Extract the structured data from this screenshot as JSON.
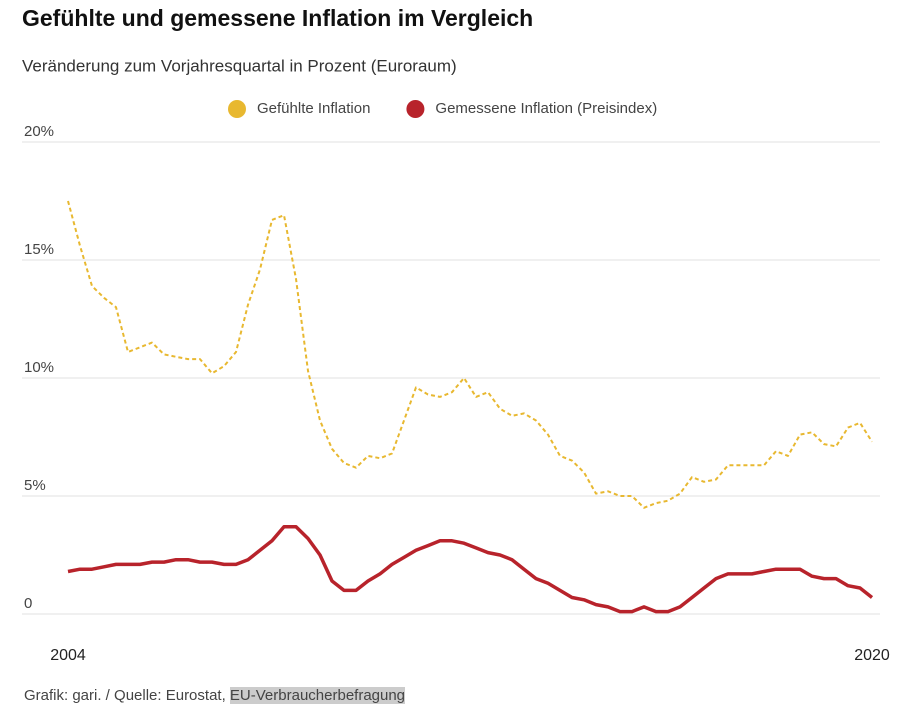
{
  "chart_data": {
    "type": "line",
    "title": "Gefühlte und gemessene Inflation im Vergleich",
    "subtitle": "Veränderung zum Vorjahresquartal in Prozent (Euroraum)",
    "source": [
      "Grafik: gari. / Quelle: Eurostat,",
      "EU-Verbraucherbefragung"
    ],
    "categories": [
      "2004",
      null,
      null,
      null,
      null,
      null,
      null,
      null,
      null,
      null,
      null,
      null,
      null,
      null,
      null,
      null,
      null,
      null,
      null,
      null,
      null,
      null,
      null,
      null,
      null,
      null,
      null,
      null,
      null,
      null,
      null,
      null,
      null,
      null,
      null,
      null,
      null,
      null,
      null,
      null,
      null,
      null,
      null,
      null,
      null,
      null,
      null,
      null,
      null,
      null,
      null,
      null,
      null,
      null,
      null,
      null,
      null,
      null,
      null,
      null,
      null,
      null,
      null,
      null,
      null,
      null,
      null,
      "2020"
    ],
    "series": [
      {
        "name": "Gefühlte Inflation",
        "color": "#e8b830",
        "dashed": true,
        "values": [
          17.5,
          15.6,
          13.9,
          13.4,
          13.0,
          11.1,
          11.3,
          11.5,
          11.0,
          10.9,
          10.8,
          10.8,
          10.2,
          10.5,
          11.1,
          13.1,
          14.6,
          16.7,
          16.9,
          14.2,
          10.3,
          8.2,
          7.0,
          6.4,
          6.2,
          6.7,
          6.6,
          6.8,
          8.2,
          9.6,
          9.3,
          9.2,
          9.4,
          10.0,
          9.2,
          9.4,
          8.7,
          8.4,
          8.5,
          8.2,
          7.6,
          6.7,
          6.5,
          6.0,
          5.1,
          5.2,
          5.0,
          5.0,
          4.5,
          4.7,
          4.8,
          5.1,
          5.8,
          5.6,
          5.7,
          6.3,
          6.3,
          6.3,
          6.3,
          6.9,
          6.7,
          7.6,
          7.7,
          7.2,
          7.1,
          7.9,
          8.1,
          7.3
        ]
      },
      {
        "name": "Gemessene Inflation (Preisindex)",
        "color": "#b8232b",
        "dashed": false,
        "values": [
          1.8,
          1.9,
          1.9,
          2.0,
          2.1,
          2.1,
          2.1,
          2.2,
          2.2,
          2.3,
          2.3,
          2.2,
          2.2,
          2.1,
          2.1,
          2.3,
          2.7,
          3.1,
          3.7,
          3.7,
          3.2,
          2.5,
          1.4,
          1.0,
          1.0,
          1.4,
          1.7,
          2.1,
          2.4,
          2.7,
          2.9,
          3.1,
          3.1,
          3.0,
          2.8,
          2.6,
          2.5,
          2.3,
          1.9,
          1.5,
          1.3,
          1.0,
          0.7,
          0.6,
          0.4,
          0.3,
          0.1,
          0.1,
          0.3,
          0.1,
          0.1,
          0.3,
          0.7,
          1.1,
          1.5,
          1.7,
          1.7,
          1.7,
          1.8,
          1.9,
          1.9,
          1.9,
          1.6,
          1.5,
          1.5,
          1.2,
          1.1,
          0.7
        ]
      }
    ],
    "ylim": [
      0,
      20
    ],
    "yticks": [
      0,
      {
        "value": 5,
        "label": "5%"
      },
      {
        "value": 10,
        "label": "10%"
      },
      {
        "value": 15,
        "label": "15%"
      },
      {
        "value": 20,
        "label": "20%"
      }
    ],
    "grid": true,
    "legend": "top"
  }
}
